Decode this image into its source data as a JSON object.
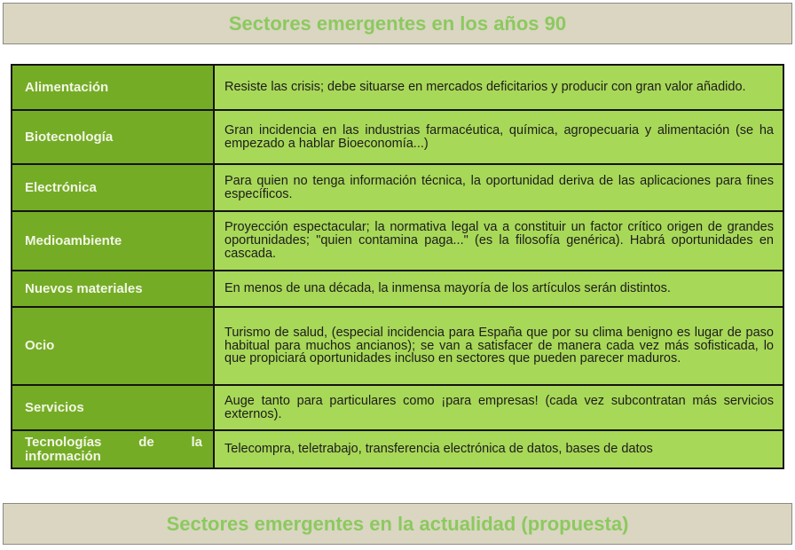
{
  "top_banner": {
    "title": "Sectores emergentes en los años 90"
  },
  "bottom_banner": {
    "title": "Sectores emergentes en la actualidad (propuesta)"
  },
  "table": {
    "columns": [
      "sector",
      "description"
    ],
    "rows": [
      {
        "sector": "Alimentación",
        "description": "Resiste las crisis; debe situarse en mercados deficitarios y producir con gran valor añadido."
      },
      {
        "sector": "Biotecnología",
        "description": "Gran incidencia en las industrias farmacéutica, química, agropecuaria y alimentación (se ha empezado a hablar Bioeconomía...)"
      },
      {
        "sector": "Electrónica",
        "description": "Para quien no tenga información técnica, la oportunidad deriva de las aplicaciones para fines específicos."
      },
      {
        "sector": "Medioambiente",
        "description": "Proyección espectacular; la normativa legal va a constituir un factor crítico origen de grandes oportunidades; \"quien contamina paga...\" (es la filosofía genérica). Habrá oportunidades en cascada."
      },
      {
        "sector": "Nuevos materiales",
        "description": "En menos de una década, la inmensa mayoría de los artículos serán distintos."
      },
      {
        "sector": "Ocio",
        "description": "Turismo de salud, (especial incidencia para España que por su clima benigno es lugar de paso habitual para muchos ancianos); se van a satisfacer de manera cada vez más sofisticada, lo que propiciará oportunidades incluso en sectores que pueden parecer maduros."
      },
      {
        "sector": "Servicios",
        "description": "Auge tanto para particulares como ¡para empresas! (cada vez subcontratan más servicios externos)."
      },
      {
        "sector": "Tecnologías de la información",
        "description": "Telecompra, teletrabajo, transferencia electrónica de datos, bases de datos"
      }
    ]
  },
  "colors": {
    "header_bg": "#dad6c2",
    "header_border": "#8a8a82",
    "title_color": "#8cc95e",
    "sector_bg": "#75ac26",
    "sector_text": "#f2f6e6",
    "desc_bg": "#a8d858",
    "desc_text": "#1c1c1c",
    "grid_color": "#141414",
    "page_bg": "#ffffff"
  }
}
